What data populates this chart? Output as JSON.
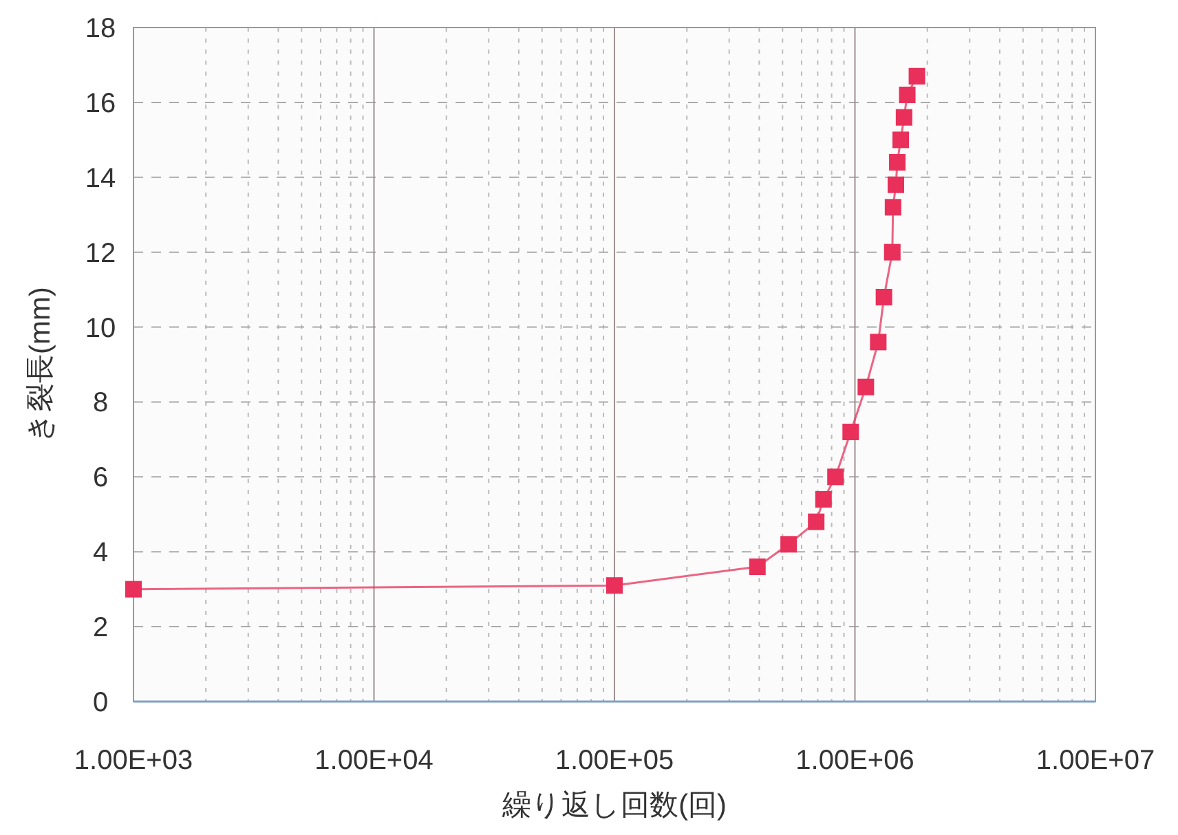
{
  "chart_data": {
    "type": "line",
    "xlabel": "繰り返し回数(回)",
    "ylabel": "き裂長(mm)",
    "log": "x",
    "grid": true,
    "marker": "square",
    "line_style": "solid",
    "xlim": [
      1000,
      10000000
    ],
    "xticks": [
      {
        "value": 1000,
        "label": "1.00E+03"
      },
      {
        "value": 10000,
        "label": "1.00E+04"
      },
      {
        "value": 100000,
        "label": "1.00E+05"
      },
      {
        "value": 1000000,
        "label": "1.00E+06"
      },
      {
        "value": 10000000,
        "label": "1.00E+07"
      }
    ],
    "ylim": [
      0,
      18
    ],
    "yticks": [
      0,
      2,
      4,
      6,
      8,
      10,
      12,
      14,
      16,
      18
    ],
    "series": [
      {
        "color": "#e8305a",
        "x": [
          1000,
          100000,
          393000,
          530000,
          690000,
          740000,
          830000,
          960000,
          1110000,
          1250000,
          1320000,
          1430000,
          1440000,
          1480000,
          1500000,
          1550000,
          1600000,
          1650000,
          1810000
        ],
        "values": [
          3.0,
          3.1,
          3.6,
          4.2,
          4.8,
          5.4,
          6.0,
          7.2,
          8.4,
          9.6,
          10.8,
          12.0,
          13.2,
          13.8,
          14.4,
          15.0,
          15.6,
          16.2,
          16.7
        ]
      }
    ]
  }
}
